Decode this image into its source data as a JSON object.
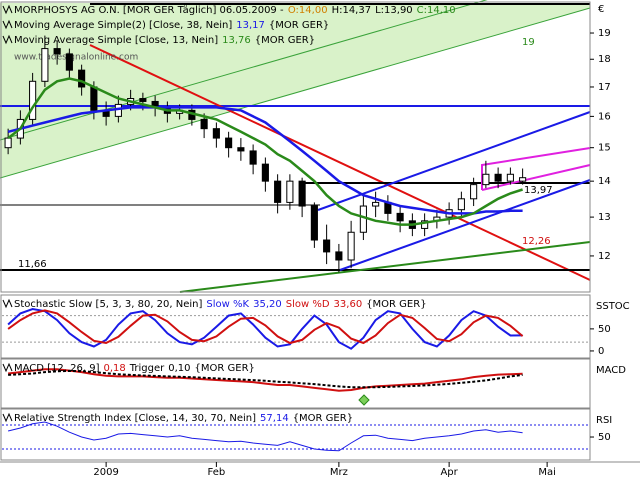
{
  "chart_data": [
    {
      "type": "candlestick",
      "log": true,
      "title": "MORPHOSYS AG O.N. [MOR GER  Täglich] 06.05.2009 -",
      "ohlc_labels": [
        "O:14,00",
        "H:14,37",
        "L:13,90",
        "C:14,10"
      ],
      "watermark": "www.tradesignalonline.com",
      "currency_symbol": "€",
      "annotations": [
        "19",
        "13,97",
        "12,26",
        "11,66"
      ],
      "categories": [
        null,
        null,
        null,
        null,
        null,
        null,
        null,
        null,
        "2009",
        null,
        null,
        null,
        null,
        null,
        null,
        null,
        null,
        "Feb",
        null,
        null,
        null,
        null,
        null,
        null,
        null,
        null,
        null,
        "Mrz",
        null,
        null,
        null,
        null,
        null,
        null,
        null,
        null,
        "Apr",
        null,
        null,
        null,
        null,
        null,
        null,
        null,
        "Mai",
        null,
        null,
        null
      ],
      "up_color": "#ffffff",
      "down_color": "#000000",
      "open": [
        15.0,
        15.3,
        15.9,
        17.2,
        18.4,
        18.2,
        17.6,
        17.0,
        16.2,
        16.0,
        16.4,
        16.6,
        16.5,
        16.3,
        16.1,
        16.2,
        15.9,
        15.6,
        15.3,
        15.0,
        14.9,
        14.5,
        14.0,
        13.4,
        14.0,
        13.3,
        12.4,
        12.1,
        11.9,
        12.6,
        13.3,
        13.4,
        13.1,
        12.9,
        12.7,
        12.9,
        13.0,
        13.2,
        13.5,
        13.9,
        14.2,
        14.0,
        14.0,
        null,
        null,
        null,
        null,
        null
      ],
      "high": [
        15.6,
        16.2,
        17.5,
        18.9,
        18.7,
        18.4,
        17.8,
        17.2,
        16.5,
        16.7,
        16.9,
        16.8,
        16.7,
        16.5,
        16.4,
        16.4,
        16.1,
        15.8,
        15.5,
        15.3,
        15.1,
        14.7,
        14.2,
        14.2,
        14.1,
        13.4,
        12.8,
        12.3,
        12.9,
        13.6,
        13.7,
        13.6,
        13.3,
        13.1,
        13.1,
        13.2,
        13.4,
        13.7,
        14.1,
        14.6,
        14.4,
        14.4,
        14.37,
        null,
        null,
        null,
        null,
        null
      ],
      "low": [
        14.8,
        15.1,
        15.7,
        17.0,
        17.8,
        17.3,
        16.7,
        15.9,
        15.7,
        15.8,
        16.2,
        16.2,
        16.0,
        15.8,
        15.9,
        15.7,
        15.3,
        15.0,
        14.7,
        14.6,
        14.2,
        13.7,
        13.1,
        13.2,
        13.0,
        12.2,
        11.8,
        11.6,
        11.7,
        12.4,
        13.0,
        12.9,
        12.6,
        12.5,
        12.5,
        12.7,
        12.8,
        13.0,
        13.3,
        13.8,
        13.8,
        13.9,
        13.9,
        null,
        null,
        null,
        null,
        null
      ],
      "close": [
        15.3,
        15.9,
        17.2,
        18.4,
        18.2,
        17.6,
        17.0,
        16.2,
        16.0,
        16.4,
        16.6,
        16.5,
        16.3,
        16.1,
        16.2,
        15.9,
        15.6,
        15.3,
        15.0,
        14.9,
        14.5,
        14.0,
        13.4,
        14.0,
        13.3,
        12.4,
        12.1,
        11.9,
        12.6,
        13.3,
        13.4,
        13.1,
        12.9,
        12.7,
        12.9,
        13.0,
        13.2,
        13.5,
        13.9,
        14.2,
        14.0,
        14.2,
        14.1,
        null,
        null,
        null,
        null,
        null
      ],
      "series": [
        {
          "name": "Moving Average Simple(2) [Close, 38, Nein]",
          "last_label": "13,17",
          "source": "{MOR GER}",
          "color": "#1a1ae6",
          "values": [
            15.5,
            15.6,
            15.7,
            15.8,
            15.9,
            16.0,
            16.1,
            16.15,
            16.2,
            16.25,
            16.3,
            16.3,
            16.3,
            16.3,
            16.3,
            16.3,
            16.3,
            16.3,
            16.25,
            16.2,
            16.0,
            15.8,
            15.5,
            15.2,
            14.9,
            14.6,
            14.3,
            14.0,
            13.8,
            13.6,
            13.5,
            13.4,
            13.3,
            13.25,
            13.2,
            13.15,
            13.1,
            13.1,
            13.1,
            13.15,
            13.15,
            13.17,
            13.17,
            null,
            null,
            null,
            null,
            null
          ]
        },
        {
          "name": "Moving Average Simple [Close, 13, Nein]",
          "last_label": "13,76",
          "source": "{MOR GER}",
          "color": "#2a8a1a",
          "values": [
            15.3,
            15.6,
            16.3,
            16.9,
            17.2,
            17.3,
            17.2,
            17.0,
            16.8,
            16.6,
            16.5,
            16.4,
            16.3,
            16.2,
            16.2,
            16.1,
            16.0,
            15.9,
            15.7,
            15.5,
            15.3,
            15.1,
            14.8,
            14.6,
            14.3,
            14.0,
            13.6,
            13.3,
            13.1,
            13.0,
            12.9,
            12.85,
            12.8,
            12.8,
            12.85,
            12.9,
            12.95,
            13.0,
            13.1,
            13.3,
            13.5,
            13.65,
            13.76,
            null,
            null,
            null,
            null,
            null
          ]
        }
      ],
      "ylim": [
        11.14,
        20.13
      ],
      "yticks": [
        12,
        13,
        14,
        15,
        16,
        17,
        18,
        19
      ]
    },
    {
      "type": "line",
      "title": "Stochastic Slow [5, 3, 3, 80, 20, Nein]",
      "source": "{MOR GER}",
      "panel_label": "SSTOC",
      "series": [
        {
          "name": "Slow %K",
          "last_label": "35,20",
          "color": "#1a1ae6",
          "values": [
            60,
            85,
            95,
            90,
            70,
            40,
            20,
            10,
            25,
            60,
            85,
            90,
            70,
            40,
            20,
            15,
            30,
            55,
            80,
            85,
            60,
            30,
            10,
            15,
            50,
            80,
            60,
            20,
            5,
            30,
            70,
            90,
            85,
            50,
            20,
            10,
            35,
            70,
            90,
            80,
            55,
            35,
            35.2,
            null,
            null,
            null,
            null,
            null
          ]
        },
        {
          "name": "Slow %D",
          "last_label": "33,60",
          "color": "#d01010",
          "values": [
            50,
            70,
            85,
            92,
            85,
            65,
            43,
            23,
            18,
            32,
            57,
            80,
            82,
            67,
            43,
            25,
            22,
            33,
            55,
            73,
            75,
            58,
            33,
            18,
            25,
            48,
            63,
            53,
            28,
            18,
            35,
            63,
            82,
            75,
            52,
            27,
            22,
            38,
            65,
            80,
            75,
            57,
            33.6,
            null,
            null,
            null,
            null,
            null
          ]
        }
      ],
      "levels": [
        20,
        80
      ],
      "level_color": "#999999",
      "ylim": [
        -16,
        120
      ],
      "yticks": [
        0,
        50
      ]
    },
    {
      "type": "line",
      "title": "MACD [12, 26, 9]",
      "source": "{MOR GER}",
      "panel_label": "MACD",
      "series": [
        {
          "name": "",
          "last_label": "0,18",
          "color": "#d01010",
          "values": [
            0.2,
            0.3,
            0.4,
            0.5,
            0.5,
            0.4,
            0.3,
            0.15,
            0.05,
            0.0,
            0.0,
            0.0,
            -0.05,
            -0.1,
            -0.1,
            -0.15,
            -0.2,
            -0.25,
            -0.3,
            -0.35,
            -0.4,
            -0.5,
            -0.6,
            -0.6,
            -0.7,
            -0.8,
            -0.9,
            -1.0,
            -0.95,
            -0.8,
            -0.7,
            -0.65,
            -0.6,
            -0.55,
            -0.5,
            -0.4,
            -0.3,
            -0.2,
            -0.05,
            0.05,
            0.12,
            0.15,
            0.18,
            null,
            null,
            null,
            null,
            null
          ]
        },
        {
          "name": "Trigger",
          "last_label": "0,10",
          "color": "#000000",
          "dash": true,
          "values": [
            0.1,
            0.15,
            0.2,
            0.3,
            0.35,
            0.38,
            0.36,
            0.3,
            0.22,
            0.15,
            0.1,
            0.06,
            0.03,
            0.0,
            -0.03,
            -0.06,
            -0.1,
            -0.14,
            -0.18,
            -0.22,
            -0.26,
            -0.31,
            -0.37,
            -0.42,
            -0.48,
            -0.54,
            -0.62,
            -0.7,
            -0.75,
            -0.76,
            -0.75,
            -0.73,
            -0.7,
            -0.67,
            -0.63,
            -0.58,
            -0.52,
            -0.45,
            -0.37,
            -0.28,
            -0.15,
            0.0,
            0.1,
            null,
            null,
            null,
            null,
            null
          ]
        }
      ],
      "ylim": [
        -2.2,
        1.0
      ]
    },
    {
      "type": "line",
      "title": "Relative Strength Index [Close, 14, 30, 70, Nein]",
      "source": "{MOR GER}",
      "panel_label": "RSI",
      "series": [
        {
          "name": "",
          "last_label": "57,14",
          "color": "#1a1ae6",
          "values": [
            60,
            65,
            72,
            75,
            68,
            58,
            50,
            45,
            48,
            55,
            56,
            54,
            52,
            50,
            52,
            48,
            46,
            44,
            42,
            43,
            40,
            38,
            36,
            42,
            36,
            30,
            28,
            27,
            40,
            52,
            53,
            48,
            46,
            44,
            48,
            50,
            52,
            55,
            60,
            62,
            58,
            60,
            57.14,
            null,
            null,
            null,
            null,
            null
          ]
        }
      ],
      "levels": [
        30,
        70
      ],
      "level_color": "#1a1ae6",
      "ylim": [
        11.7,
        91.7
      ],
      "yticks": [
        50
      ]
    }
  ]
}
